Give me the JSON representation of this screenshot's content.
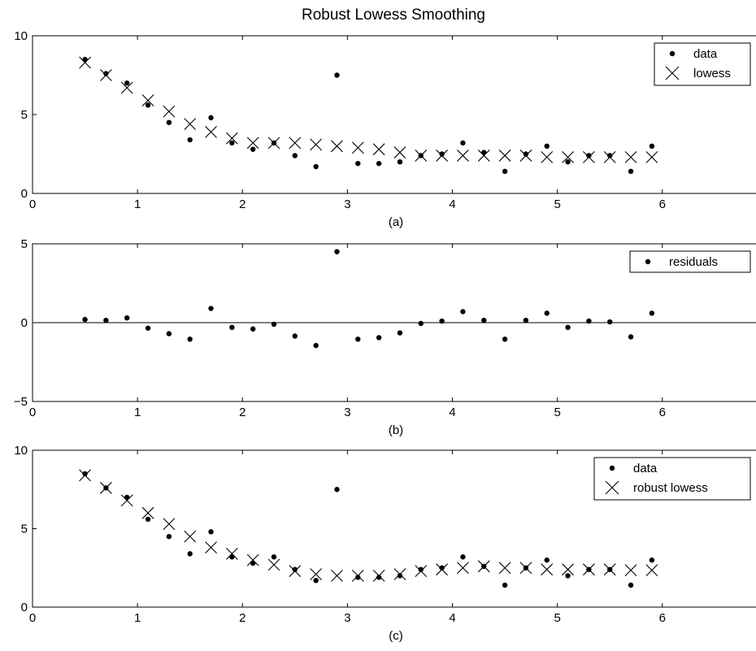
{
  "figure_title": "Robust Lowess Smoothing",
  "chart_data": [
    {
      "type": "scatter",
      "caption": "(a)",
      "xlim": [
        0,
        6.9
      ],
      "ylim": [
        0,
        10
      ],
      "xticks": [
        0,
        1,
        2,
        3,
        4,
        5,
        6
      ],
      "yticks": [
        0,
        5,
        10
      ],
      "grid": false,
      "zero_line": false,
      "legend_position": "top-right",
      "x": [
        0.5,
        0.7,
        0.9,
        1.1,
        1.3,
        1.5,
        1.7,
        1.9,
        2.1,
        2.3,
        2.5,
        2.7,
        2.9,
        3.1,
        3.3,
        3.5,
        3.7,
        3.9,
        4.1,
        4.3,
        4.5,
        4.7,
        4.9,
        5.1,
        5.3,
        5.5,
        5.7,
        5.9
      ],
      "series": [
        {
          "name": "data",
          "marker": "dot",
          "values": [
            8.5,
            7.6,
            7.0,
            5.6,
            4.5,
            3.4,
            4.8,
            3.2,
            2.8,
            3.2,
            2.4,
            1.7,
            7.5,
            1.9,
            1.9,
            2.0,
            2.4,
            2.5,
            3.2,
            2.6,
            1.4,
            2.5,
            3.0,
            2.0,
            2.4,
            2.4,
            1.4,
            3.0
          ]
        },
        {
          "name": "lowess",
          "marker": "cross",
          "values": [
            8.3,
            7.5,
            6.7,
            5.9,
            5.2,
            4.4,
            3.9,
            3.5,
            3.2,
            3.2,
            3.2,
            3.1,
            3.0,
            2.9,
            2.8,
            2.6,
            2.4,
            2.4,
            2.4,
            2.4,
            2.4,
            2.4,
            2.3,
            2.3,
            2.3,
            2.3,
            2.3,
            2.3
          ]
        }
      ]
    },
    {
      "type": "scatter",
      "caption": "(b)",
      "xlim": [
        0,
        6.9
      ],
      "ylim": [
        -5,
        5
      ],
      "xticks": [
        0,
        1,
        2,
        3,
        4,
        5,
        6
      ],
      "yticks": [
        -5,
        0,
        5
      ],
      "grid": false,
      "zero_line": true,
      "legend_position": "top-right",
      "x": [
        0.5,
        0.7,
        0.9,
        1.1,
        1.3,
        1.5,
        1.7,
        1.9,
        2.1,
        2.3,
        2.5,
        2.7,
        2.9,
        3.1,
        3.3,
        3.5,
        3.7,
        3.9,
        4.1,
        4.3,
        4.5,
        4.7,
        4.9,
        5.1,
        5.3,
        5.5,
        5.7,
        5.9
      ],
      "series": [
        {
          "name": "residuals",
          "marker": "dot",
          "values": [
            0.2,
            0.15,
            0.3,
            -0.35,
            -0.7,
            -1.05,
            0.9,
            -0.3,
            -0.4,
            -0.1,
            -0.85,
            -1.45,
            4.5,
            -1.05,
            -0.95,
            -0.65,
            -0.05,
            0.1,
            0.7,
            0.15,
            -1.05,
            0.15,
            0.6,
            -0.3,
            0.1,
            0.05,
            -0.9,
            0.6
          ]
        }
      ]
    },
    {
      "type": "scatter",
      "caption": "(c)",
      "xlim": [
        0,
        6.9
      ],
      "ylim": [
        0,
        10
      ],
      "xticks": [
        0,
        1,
        2,
        3,
        4,
        5,
        6
      ],
      "yticks": [
        0,
        5,
        10
      ],
      "grid": false,
      "zero_line": false,
      "legend_position": "top-right",
      "x": [
        0.5,
        0.7,
        0.9,
        1.1,
        1.3,
        1.5,
        1.7,
        1.9,
        2.1,
        2.3,
        2.5,
        2.7,
        2.9,
        3.1,
        3.3,
        3.5,
        3.7,
        3.9,
        4.1,
        4.3,
        4.5,
        4.7,
        4.9,
        5.1,
        5.3,
        5.5,
        5.7,
        5.9
      ],
      "series": [
        {
          "name": "data",
          "marker": "dot",
          "values": [
            8.5,
            7.6,
            7.0,
            5.6,
            4.5,
            3.4,
            4.8,
            3.2,
            2.8,
            3.2,
            2.4,
            1.7,
            7.5,
            1.9,
            1.9,
            2.0,
            2.4,
            2.5,
            3.2,
            2.6,
            1.4,
            2.5,
            3.0,
            2.0,
            2.4,
            2.4,
            1.4,
            3.0
          ]
        },
        {
          "name": "robust lowess",
          "marker": "cross",
          "values": [
            8.4,
            7.6,
            6.8,
            6.0,
            5.3,
            4.5,
            3.8,
            3.4,
            3.0,
            2.7,
            2.3,
            2.1,
            2.0,
            2.0,
            2.0,
            2.1,
            2.3,
            2.4,
            2.5,
            2.6,
            2.5,
            2.5,
            2.4,
            2.4,
            2.4,
            2.4,
            2.35,
            2.35
          ]
        }
      ]
    }
  ]
}
